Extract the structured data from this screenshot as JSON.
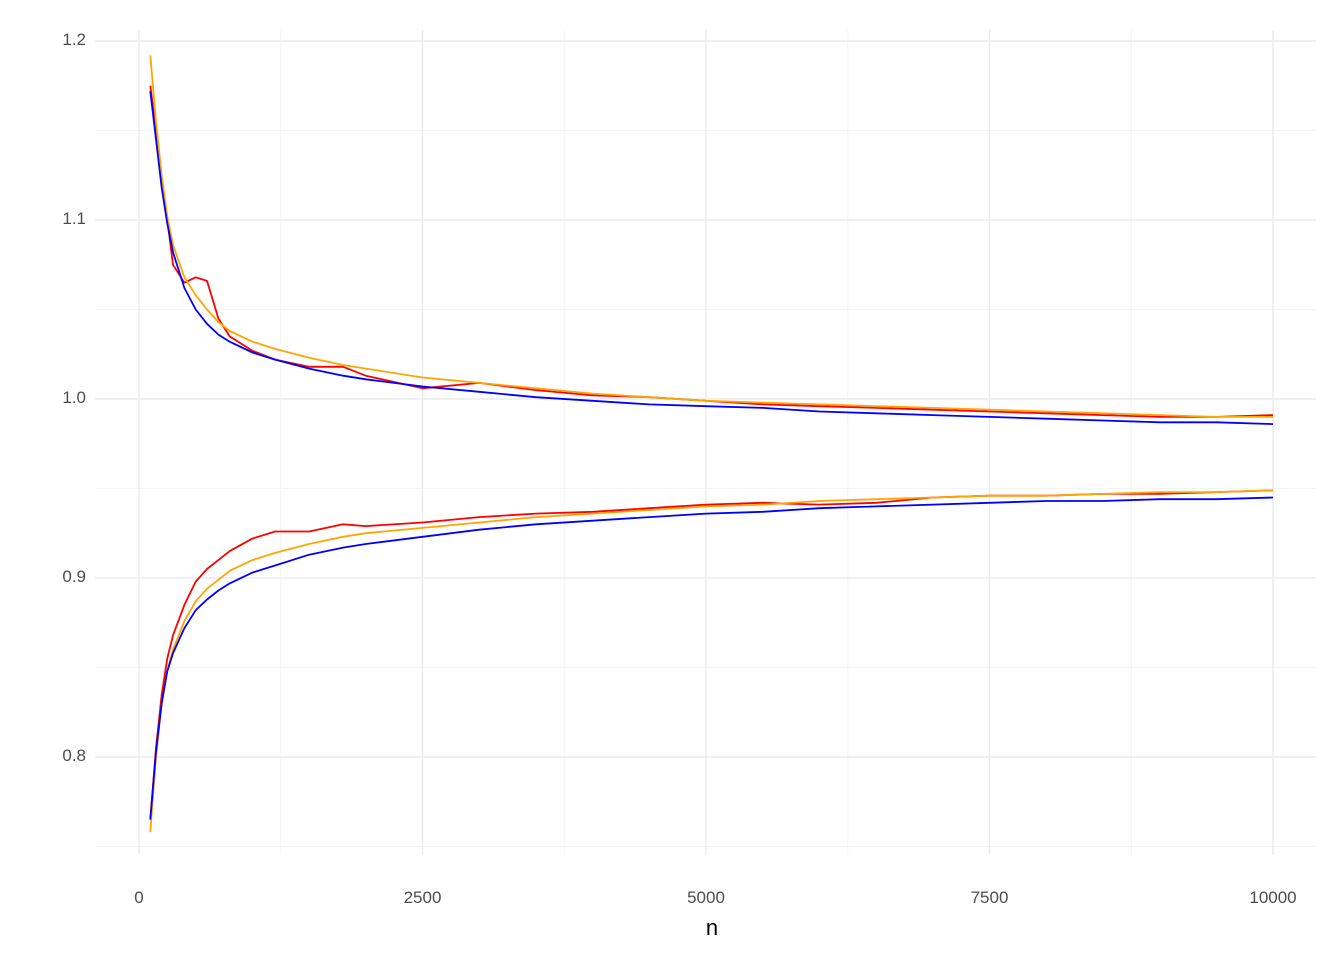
{
  "chart_data": {
    "type": "line",
    "title": "",
    "xlabel": "n",
    "ylabel": "",
    "xlim": [
      -500,
      10500
    ],
    "ylim": [
      0.745,
      1.205
    ],
    "x_ticks": [
      0,
      2500,
      5000,
      7500,
      10000
    ],
    "x_tick_labels": [
      "0",
      "2500",
      "5000",
      "7500",
      "10000"
    ],
    "y_ticks": [
      0.8,
      0.9,
      1.0,
      1.1,
      1.2
    ],
    "y_tick_labels": [
      "0.8",
      "0.9",
      "1.0",
      "1.1",
      "1.2"
    ],
    "grid": true,
    "legend": "none",
    "x": [
      100,
      150,
      200,
      250,
      300,
      400,
      500,
      600,
      700,
      800,
      1000,
      1200,
      1500,
      1800,
      2000,
      2500,
      3000,
      3500,
      4000,
      4500,
      5000,
      5500,
      6000,
      6500,
      7000,
      7500,
      8000,
      8500,
      9000,
      9500,
      10000
    ],
    "series": [
      {
        "name": "upper-red",
        "color": "#ff0000",
        "values": [
          1.175,
          1.15,
          1.12,
          1.1,
          1.075,
          1.065,
          1.068,
          1.066,
          1.045,
          1.035,
          1.027,
          1.022,
          1.018,
          1.018,
          1.013,
          1.006,
          1.009,
          1.005,
          1.002,
          1.001,
          0.999,
          0.997,
          0.996,
          0.995,
          0.994,
          0.993,
          0.992,
          0.991,
          0.99,
          0.99,
          0.991
        ]
      },
      {
        "name": "upper-orange",
        "color": "#ffa500",
        "values": [
          1.192,
          1.155,
          1.125,
          1.102,
          1.086,
          1.068,
          1.058,
          1.05,
          1.043,
          1.038,
          1.032,
          1.028,
          1.023,
          1.019,
          1.017,
          1.012,
          1.009,
          1.006,
          1.003,
          1.001,
          0.999,
          0.998,
          0.997,
          0.996,
          0.995,
          0.994,
          0.993,
          0.992,
          0.991,
          0.99,
          0.99
        ]
      },
      {
        "name": "upper-blue",
        "color": "#0000ff",
        "values": [
          1.172,
          1.145,
          1.118,
          1.098,
          1.082,
          1.062,
          1.05,
          1.042,
          1.036,
          1.032,
          1.026,
          1.022,
          1.017,
          1.013,
          1.011,
          1.007,
          1.004,
          1.001,
          0.999,
          0.997,
          0.996,
          0.995,
          0.993,
          0.992,
          0.991,
          0.99,
          0.989,
          0.988,
          0.987,
          0.987,
          0.986
        ]
      },
      {
        "name": "lower-red",
        "color": "#ff0000",
        "values": [
          0.765,
          0.805,
          0.835,
          0.855,
          0.868,
          0.885,
          0.898,
          0.905,
          0.91,
          0.915,
          0.922,
          0.926,
          0.926,
          0.93,
          0.929,
          0.931,
          0.934,
          0.936,
          0.937,
          0.939,
          0.941,
          0.942,
          0.941,
          0.942,
          0.945,
          0.946,
          0.946,
          0.947,
          0.947,
          0.948,
          0.949
        ]
      },
      {
        "name": "lower-orange",
        "color": "#ffa500",
        "values": [
          0.758,
          0.8,
          0.83,
          0.848,
          0.86,
          0.876,
          0.887,
          0.894,
          0.899,
          0.904,
          0.91,
          0.914,
          0.919,
          0.923,
          0.925,
          0.928,
          0.931,
          0.934,
          0.936,
          0.938,
          0.94,
          0.941,
          0.943,
          0.944,
          0.945,
          0.946,
          0.946,
          0.947,
          0.948,
          0.948,
          0.949
        ]
      },
      {
        "name": "lower-blue",
        "color": "#0000ff",
        "values": [
          0.765,
          0.803,
          0.83,
          0.848,
          0.858,
          0.872,
          0.882,
          0.888,
          0.893,
          0.897,
          0.903,
          0.907,
          0.913,
          0.917,
          0.919,
          0.923,
          0.927,
          0.93,
          0.932,
          0.934,
          0.936,
          0.937,
          0.939,
          0.94,
          0.941,
          0.942,
          0.943,
          0.943,
          0.944,
          0.944,
          0.945
        ]
      }
    ]
  },
  "colors": {
    "grid_major": "#ebebeb",
    "grid_minor": "#f4f4f4",
    "tick_text": "#4d4d4d"
  }
}
